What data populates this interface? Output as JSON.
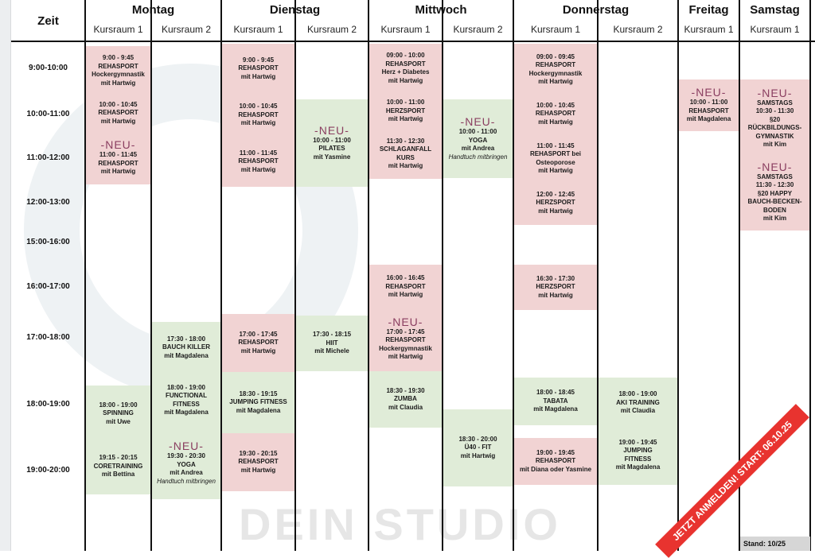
{
  "header": {
    "zeit": "Zeit",
    "days": [
      {
        "name": "Montag",
        "rooms": [
          "Kursraum 1",
          "Kursraum 2"
        ]
      },
      {
        "name": "Dienstag",
        "rooms": [
          "Kursraum 1",
          "Kursraum 2"
        ]
      },
      {
        "name": "Mittwoch",
        "rooms": [
          "Kursraum 1",
          "Kursraum 2"
        ]
      },
      {
        "name": "Donnerstag",
        "rooms": [
          "Kursraum 1",
          "Kursraum 2"
        ]
      },
      {
        "name": "Freitag",
        "rooms": [
          "Kursraum 1"
        ]
      },
      {
        "name": "Samstag",
        "rooms": [
          "Kursraum 1"
        ]
      }
    ]
  },
  "times": [
    "9:00-10:00",
    "10:00-11:00",
    "11:00-12:00",
    "12:00-13:00",
    "15:00-16:00",
    "16:00-17:00",
    "17:00-18:00",
    "18:00-19:00",
    "19:00-20:00"
  ],
  "colors": {
    "rehab": "#f1d3d3",
    "fitness": "#e0ecd8",
    "neu": "#8a3e60",
    "banner": "#e8332f"
  },
  "columns": [
    {
      "blocks": [
        {
          "type": "rehab",
          "entries": [
            {
              "lines": [
                "9:00 - 9:45",
                "REHASPORT",
                "Hockergymnastik",
                "mit Hartwig"
              ]
            },
            {
              "lines": [
                "10:00 - 10:45",
                "REHASPORT",
                "mit Hartwig"
              ]
            },
            {
              "neu": "-NEU-",
              "lines": [
                "11:00 - 11:45",
                "REHASPORT",
                "mit Hartwig"
              ]
            }
          ]
        },
        {
          "type": "fitness",
          "entries": [
            {
              "lines": [
                "18:00 - 19:00",
                "SPINNING",
                "mit Uwe"
              ]
            },
            {
              "lines": [
                "19:15 - 20:15",
                "CORETRAINING",
                "mit Bettina"
              ]
            }
          ]
        }
      ]
    },
    {
      "blocks": [
        {
          "type": "fitness",
          "entries": [
            {
              "lines": [
                "17:30 - 18:00",
                "BAUCH KILLER",
                "mit Magdalena"
              ]
            },
            {
              "lines": [
                "18:00 - 19:00",
                "FUNCTIONAL",
                "FITNESS",
                "mit Magdalena"
              ]
            },
            {
              "neu": "-NEU-",
              "lines": [
                "19:30 - 20:30",
                "YOGA",
                "mit Andrea"
              ],
              "note": "Handtuch mitbringen"
            }
          ]
        }
      ]
    },
    {
      "blocks": [
        {
          "type": "rehab",
          "entries": [
            {
              "lines": [
                "9:00 - 9:45",
                "REHASPORT",
                "mit Hartwig"
              ]
            },
            {
              "lines": [
                "10:00 - 10:45",
                "REHASPORT",
                "mit Hartwig"
              ]
            },
            {
              "lines": [
                "11:00 - 11:45",
                "REHASPORT",
                "mit Hartwig"
              ]
            }
          ]
        },
        {
          "type": "rehab",
          "entries": [
            {
              "lines": [
                "17:00 - 17:45",
                "REHASPORT",
                "mit Hartwig"
              ]
            }
          ]
        },
        {
          "type": "fitness",
          "entries": [
            {
              "lines": [
                "18:30 - 19:15",
                "JUMPING FITNESS",
                "mit Magdalena"
              ]
            }
          ]
        },
        {
          "type": "rehab",
          "entries": [
            {
              "lines": [
                "19:30 - 20:15",
                "REHASPORT",
                "mit Hartwig"
              ]
            }
          ]
        }
      ]
    },
    {
      "blocks": [
        {
          "type": "fitness",
          "entries": [
            {
              "neu": "-NEU-",
              "lines": [
                "10:00 - 11:00",
                "PILATES",
                "mit Yasmine"
              ]
            }
          ]
        },
        {
          "type": "fitness",
          "entries": [
            {
              "lines": [
                "17:30 - 18:15",
                "HIIT",
                "mit Michele"
              ]
            }
          ]
        }
      ]
    },
    {
      "blocks": [
        {
          "type": "rehab",
          "entries": [
            {
              "lines": [
                "09:00 - 10:00",
                "REHASPORT",
                "Herz + Diabetes",
                "mit Hartwig"
              ]
            },
            {
              "lines": [
                "10:00 - 11:00",
                "HERZSPORT",
                "mit Hartwig"
              ]
            },
            {
              "lines": [
                "11:30 - 12:30",
                "SCHLAGANFALL",
                "KURS",
                "mit Hartwig"
              ]
            }
          ]
        },
        {
          "type": "rehab",
          "entries": [
            {
              "lines": [
                "16:00 - 16:45",
                "REHASPORT",
                "mit Hartwig"
              ]
            },
            {
              "neu": "-NEU-",
              "lines": [
                "17:00 - 17:45",
                "REHASPORT",
                "Hockergymnastik",
                "mit Hartwig"
              ]
            }
          ]
        },
        {
          "type": "fitness",
          "entries": [
            {
              "lines": [
                "18:30 - 19:30",
                "ZUMBA",
                "mit Claudia"
              ]
            }
          ]
        }
      ]
    },
    {
      "blocks": [
        {
          "type": "fitness",
          "entries": [
            {
              "neu": "-NEU-",
              "lines": [
                "10:00 - 11:00",
                "YOGA",
                "mit Andrea"
              ],
              "note": "Handtuch mitbringen"
            }
          ]
        },
        {
          "type": "fitness",
          "entries": [
            {
              "lines": [
                "18:30 - 20:00",
                "Ü40 - FIT",
                "mit Hartwig"
              ]
            }
          ]
        }
      ]
    },
    {
      "blocks": [
        {
          "type": "rehab",
          "entries": [
            {
              "lines": [
                "09:00 - 09:45",
                "REHASPORT",
                "Hockergymnastik",
                "mit Hartwig"
              ]
            },
            {
              "lines": [
                "10:00 - 10:45",
                "REHASPORT",
                "mit Hartwig"
              ]
            },
            {
              "lines": [
                "11:00 - 11:45",
                "REHASPORT bei",
                "Osteoporose",
                "mit Hartwig"
              ]
            },
            {
              "lines": [
                "12:00 - 12:45",
                "HERZSPORT",
                "mit Hartwig"
              ]
            }
          ]
        },
        {
          "type": "rehab",
          "entries": [
            {
              "lines": [
                "16:30 - 17:30",
                "HERZSPORT",
                "mit Hartwig"
              ]
            }
          ]
        },
        {
          "type": "fitness",
          "entries": [
            {
              "lines": [
                "18:00 - 18:45",
                "TABATA",
                "mit Magdalena"
              ]
            }
          ]
        },
        {
          "type": "rehab",
          "entries": [
            {
              "lines": [
                "19:00 - 19:45",
                "REHASPORT",
                "mit Diana oder Yasmine"
              ]
            }
          ]
        }
      ]
    },
    {
      "blocks": [
        {
          "type": "fitness",
          "entries": [
            {
              "lines": [
                "18:00 - 19:00",
                "AKI TRAINING",
                "mit Claudia"
              ]
            },
            {
              "lines": [
                "19:00 - 19:45",
                "JUMPING",
                "FITNESS",
                "mit Magdalena"
              ]
            }
          ]
        }
      ]
    },
    {
      "blocks": [
        {
          "type": "rehab",
          "entries": [
            {
              "neu": "-NEU-",
              "lines": [
                "10:00 - 11:00",
                "REHASPORT",
                "mit Magdalena"
              ]
            }
          ]
        }
      ]
    },
    {
      "blocks": [
        {
          "type": "rehab",
          "entries": [
            {
              "neu": "-NEU-",
              "lines": [
                "SAMSTAGS",
                "10:30 - 11:30",
                "§20",
                "RÜCKBILDUNGS-",
                "GYMNASTIK",
                "mit Kim"
              ]
            },
            {
              "neu": "-NEU-",
              "lines": [
                "SAMSTAGS",
                "11:30 - 12:30",
                "§20 HAPPY",
                "BAUCH-BECKEN-",
                "BODEN",
                "mit Kim"
              ]
            }
          ]
        }
      ]
    }
  ],
  "banner": "JETZT ANMELDEN! START: 06.10.25",
  "stand": "Stand: 10/25",
  "watermark": "DEIN STUDIO"
}
